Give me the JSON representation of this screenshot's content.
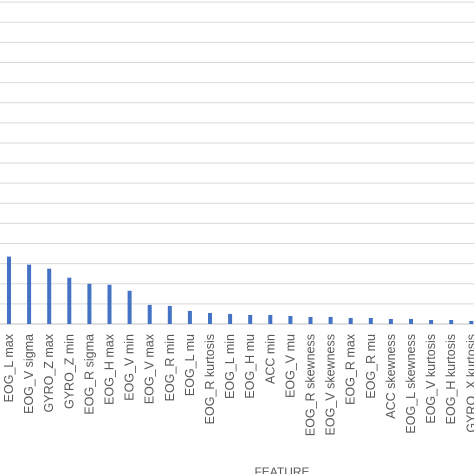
{
  "chart_data": {
    "type": "bar",
    "xlabel": "FEATURE",
    "ylabel": "",
    "grid": true,
    "ylim": [
      0,
      0.34
    ],
    "bar_color": "#4472c4",
    "grid_color": "#d9d9d9",
    "categories": [
      "EOG_L max",
      "EOG_V sigma",
      "GYRO_Z max",
      "GYRO_Z min",
      "EOG_R sigma",
      "EOG_H max",
      "EOG_V min",
      "EOG_V max",
      "EOG_R min",
      "EOG_L mu",
      "EOG_R kurtosis",
      "EOG_L min",
      "EOG_H mu",
      "ACC min",
      "EOG_V mu",
      "EOG_R skewness",
      "EOG_V skewness",
      "EOG_R max",
      "EOG_R mu",
      "ACC skewness",
      "EOG_L skewness",
      "EOG_V kurtosis",
      "EOG_H kurtosis",
      "GYRO_X kurtosis"
    ],
    "values": [
      0.067,
      0.059,
      0.055,
      0.046,
      0.04,
      0.039,
      0.033,
      0.019,
      0.018,
      0.013,
      0.011,
      0.01,
      0.009,
      0.009,
      0.008,
      0.007,
      0.007,
      0.006,
      0.006,
      0.005,
      0.005,
      0.004,
      0.004,
      0.003
    ]
  }
}
